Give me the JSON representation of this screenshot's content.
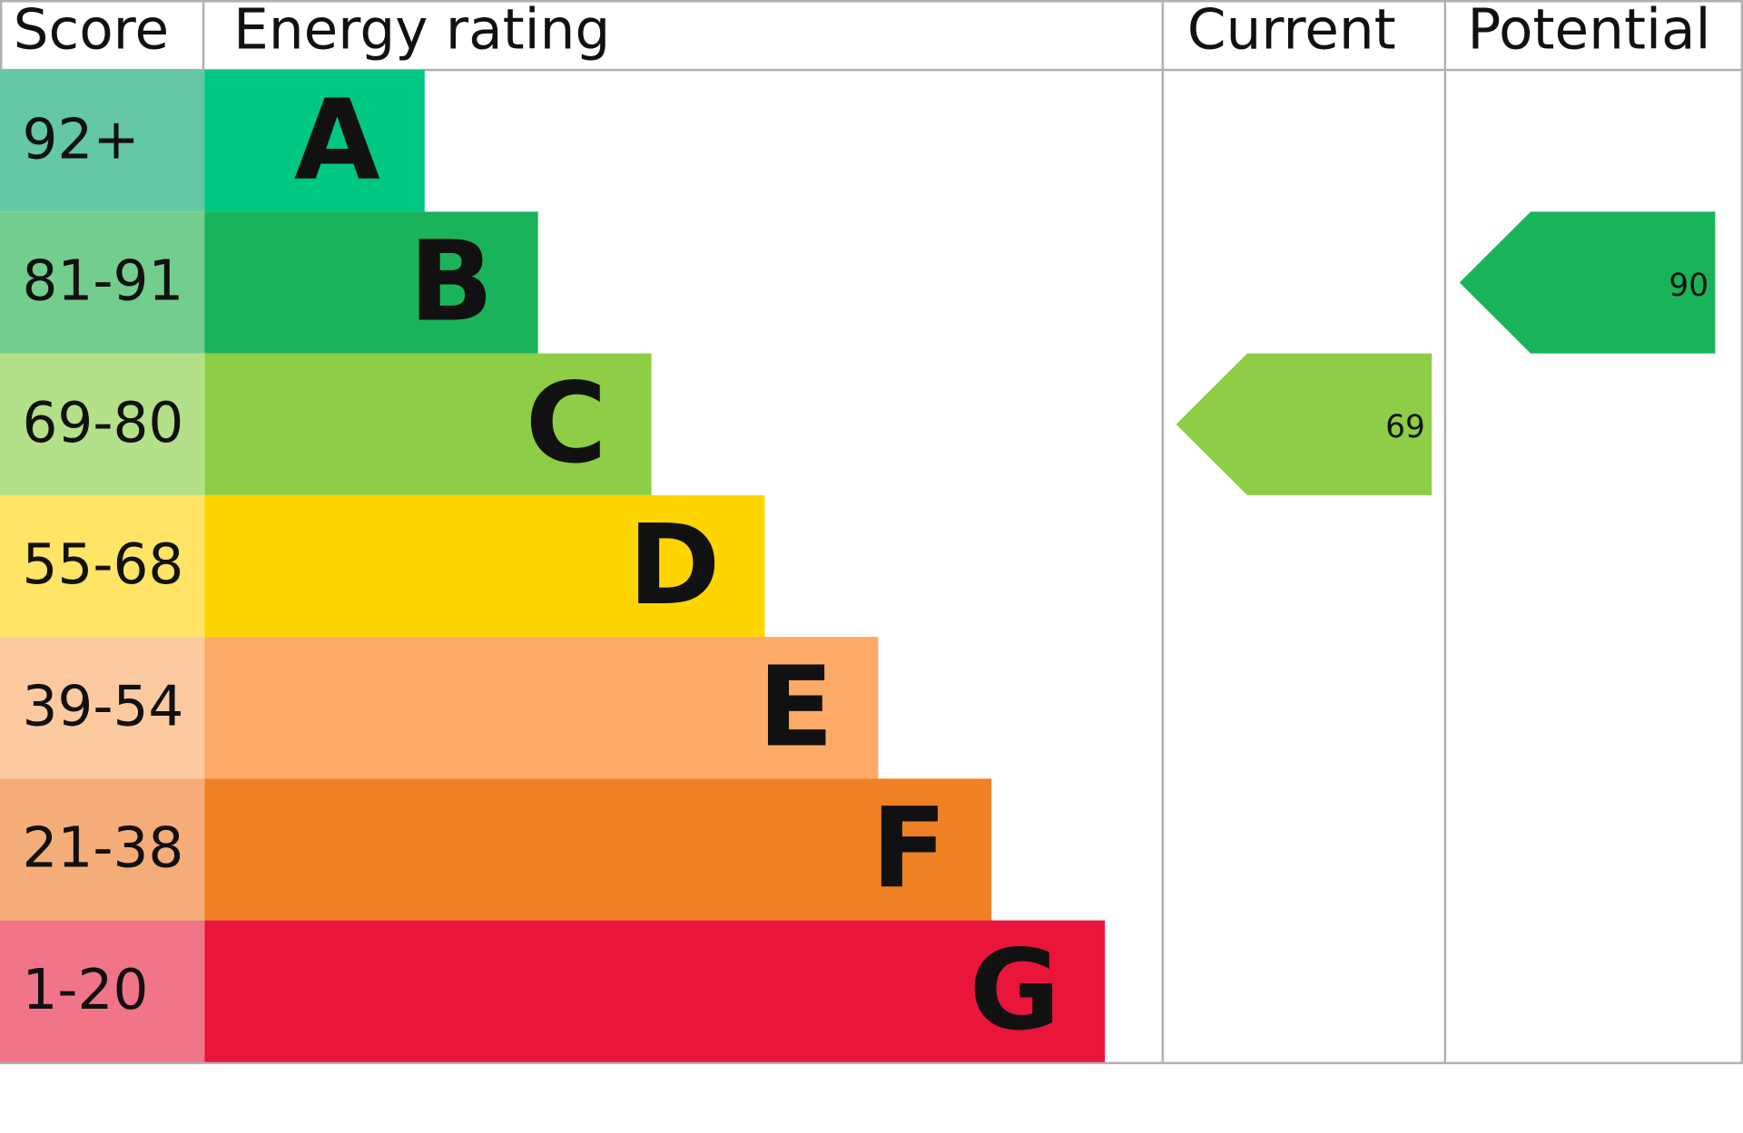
{
  "chart_data": {
    "type": "epc",
    "headers": [
      "Score",
      "Energy rating",
      "Current",
      "Potential"
    ],
    "bands": [
      {
        "score": "92+",
        "rating": "A",
        "color": "#00c781",
        "score_color": "#64c8a5"
      },
      {
        "score": "81-91",
        "rating": "B",
        "color": "#19b459",
        "score_color": "#73cd8e"
      },
      {
        "score": "69-80",
        "rating": "C",
        "color": "#8dce46",
        "score_color": "#b3e088"
      },
      {
        "score": "55-68",
        "rating": "D",
        "color": "#ffd500",
        "score_color": "#ffe466"
      },
      {
        "score": "39-54",
        "rating": "E",
        "color": "#fcaa65",
        "score_color": "#fdcaa0"
      },
      {
        "score": "21-38",
        "rating": "F",
        "color": "#ef8023",
        "score_color": "#f4ad78"
      },
      {
        "score": "1-20",
        "rating": "G",
        "color": "#e9153b",
        "score_color": "#f27488"
      }
    ],
    "current": {
      "value": 69,
      "color": "#8dce46"
    },
    "potential": {
      "value": 90,
      "color": "#19b459"
    }
  }
}
